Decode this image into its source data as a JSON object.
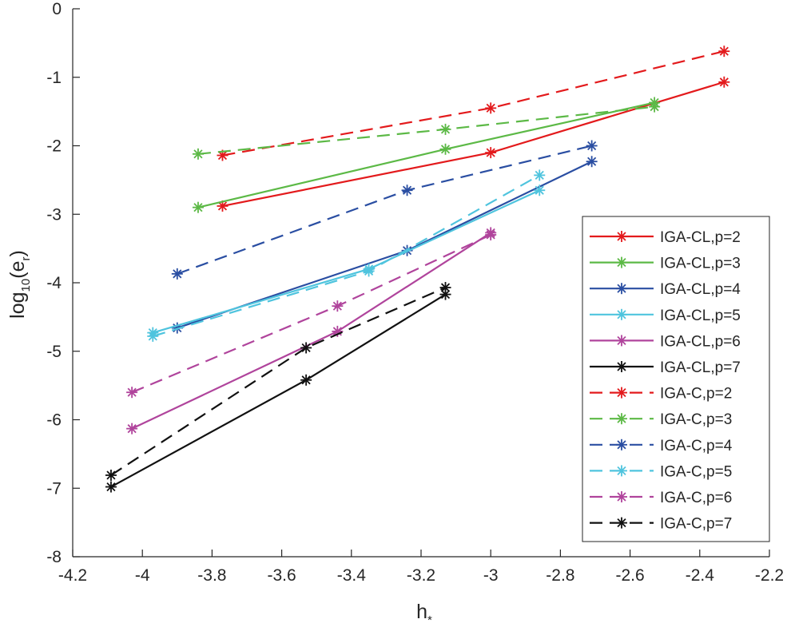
{
  "chart_data": {
    "type": "line",
    "title": "",
    "xlabel": {
      "base": "h",
      "subscript": "*"
    },
    "ylabel": {
      "prefix": "log",
      "subscript": "10",
      "mid": "(e",
      "subscript2": "r",
      "suffix": ")"
    },
    "xlim": [
      -4.2,
      -2.2
    ],
    "ylim": [
      -8,
      0
    ],
    "xticks": [
      -4.2,
      -4,
      -3.8,
      -3.6,
      -3.4,
      -3.2,
      -3,
      -2.8,
      -2.6,
      -2.4,
      -2.2
    ],
    "yticks": [
      -8,
      -7,
      -6,
      -5,
      -4,
      -3,
      -2,
      -1,
      0
    ],
    "grid": false,
    "legend_position": "right",
    "series": [
      {
        "name": "IGA-CL,p=2",
        "color": "#e31a1c",
        "dash": "solid",
        "marker": "asterisk",
        "x": [
          -3.77,
          -3.0,
          -2.33
        ],
        "y": [
          -2.88,
          -2.1,
          -1.07
        ]
      },
      {
        "name": "IGA-CL,p=3",
        "color": "#5cb946",
        "dash": "solid",
        "marker": "asterisk",
        "x": [
          -3.84,
          -3.13,
          -2.53
        ],
        "y": [
          -2.9,
          -2.05,
          -1.37
        ]
      },
      {
        "name": "IGA-CL,p=4",
        "color": "#2a4ea2",
        "dash": "solid",
        "marker": "asterisk",
        "x": [
          -3.9,
          -3.24,
          -2.71
        ],
        "y": [
          -4.66,
          -3.53,
          -2.23
        ]
      },
      {
        "name": "IGA-CL,p=5",
        "color": "#4fc4de",
        "dash": "solid",
        "marker": "asterisk",
        "x": [
          -3.97,
          -3.35,
          -2.86
        ],
        "y": [
          -4.73,
          -3.8,
          -2.65
        ]
      },
      {
        "name": "IGA-CL,p=6",
        "color": "#b0449c",
        "dash": "solid",
        "marker": "asterisk",
        "x": [
          -4.03,
          -3.44,
          -3.0
        ],
        "y": [
          -6.13,
          -4.71,
          -3.27
        ]
      },
      {
        "name": "IGA-CL,p=7",
        "color": "#111111",
        "dash": "solid",
        "marker": "asterisk",
        "x": [
          -4.09,
          -3.53,
          -3.13
        ],
        "y": [
          -6.98,
          -5.42,
          -4.17
        ]
      },
      {
        "name": "IGA-C,p=2",
        "color": "#e31a1c",
        "dash": "dashed",
        "marker": "asterisk",
        "x": [
          -3.77,
          -3.0,
          -2.33
        ],
        "y": [
          -2.14,
          -1.45,
          -0.62
        ]
      },
      {
        "name": "IGA-C,p=3",
        "color": "#5cb946",
        "dash": "dashed",
        "marker": "asterisk",
        "x": [
          -3.84,
          -3.13,
          -2.53
        ],
        "y": [
          -2.12,
          -1.76,
          -1.43
        ]
      },
      {
        "name": "IGA-C,p=4",
        "color": "#2a4ea2",
        "dash": "dashed",
        "marker": "asterisk",
        "x": [
          -3.9,
          -3.24,
          -2.71
        ],
        "y": [
          -3.87,
          -2.65,
          -2.0
        ]
      },
      {
        "name": "IGA-C,p=5",
        "color": "#4fc4de",
        "dash": "dashed",
        "marker": "asterisk",
        "x": [
          -3.97,
          -3.35,
          -2.86
        ],
        "y": [
          -4.78,
          -3.83,
          -2.43
        ]
      },
      {
        "name": "IGA-C,p=6",
        "color": "#b0449c",
        "dash": "dashed",
        "marker": "asterisk",
        "x": [
          -4.03,
          -3.44,
          -3.0
        ],
        "y": [
          -5.6,
          -4.34,
          -3.3
        ]
      },
      {
        "name": "IGA-C,p=7",
        "color": "#111111",
        "dash": "dashed",
        "marker": "asterisk",
        "x": [
          -4.09,
          -3.53,
          -3.13
        ],
        "y": [
          -6.81,
          -4.95,
          -4.07
        ]
      }
    ]
  }
}
